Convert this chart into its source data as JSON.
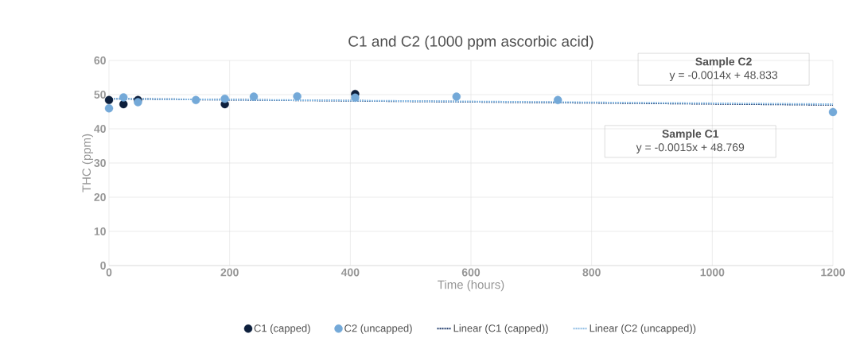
{
  "chart_data": {
    "type": "scatter",
    "title": "C1 and C2 (1000 ppm ascorbic acid)",
    "xlabel": "Time (hours)",
    "ylabel": "THC (ppm)",
    "xlim": [
      0,
      1200
    ],
    "xticks": [
      0,
      200,
      400,
      600,
      800,
      1000,
      1200
    ],
    "ylim": [
      0,
      60
    ],
    "yticks": [
      0,
      10,
      20,
      30,
      40,
      50,
      60
    ],
    "grid": true,
    "legend": "bottom",
    "marker": "circle",
    "annotations": [
      "Sample C2",
      "y = -0.0014x + 48.833",
      "Sample C1",
      "y = -0.0015x + 48.769"
    ],
    "series": [
      {
        "name": "C1 (capped)",
        "color": "#0d1f3c",
        "x": [
          0,
          24,
          48,
          192,
          408
        ],
        "values": [
          48.4,
          47.2,
          48.4,
          47.2,
          50.2
        ]
      },
      {
        "name": "C2 (uncapped)",
        "color": "#74a9d8",
        "x": [
          0,
          24,
          48,
          144,
          192,
          240,
          312,
          408,
          576,
          744,
          1200
        ],
        "values": [
          46.0,
          49.2,
          47.8,
          48.4,
          48.8,
          49.4,
          49.5,
          49.1,
          49.4,
          48.4,
          44.9
        ]
      },
      {
        "name": "Linear (C1 (capped))",
        "type": "line",
        "color": "#1f3a6b",
        "marker": "none",
        "line_style": "dotted",
        "x": [
          0,
          1200
        ],
        "values": [
          48.8,
          47.0
        ]
      },
      {
        "name": "Linear (C2 (uncapped))",
        "type": "line",
        "color": "#8bbbe3",
        "marker": "none",
        "line_style": "dotted",
        "x": [
          0,
          1200
        ],
        "values": [
          48.8,
          47.2
        ]
      }
    ]
  }
}
